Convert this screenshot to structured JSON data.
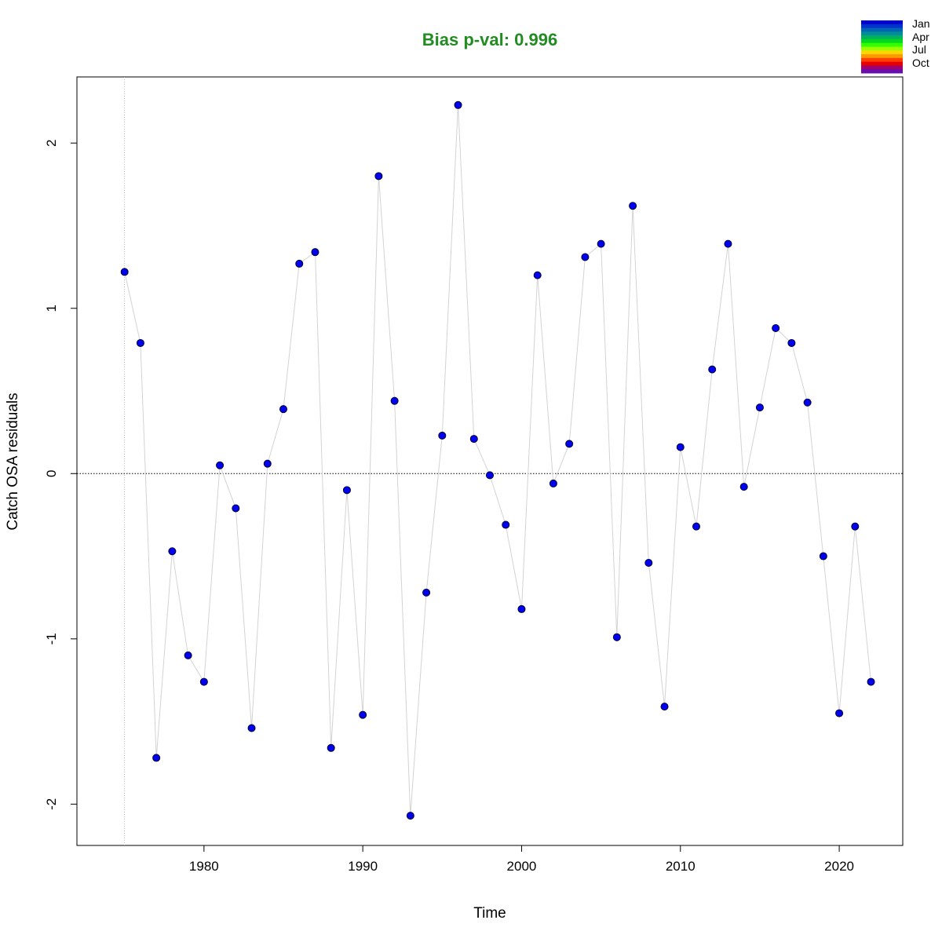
{
  "chart_data": {
    "type": "scatter",
    "title": "Bias p-val: 0.996",
    "title_color": "#228B22",
    "xlabel": "Time",
    "ylabel": "Catch OSA residuals",
    "xlim": [
      1972,
      2024
    ],
    "ylim": [
      -2.25,
      2.4
    ],
    "xticks": [
      1980,
      1990,
      2000,
      2010,
      2020
    ],
    "yticks": [
      -2,
      -1,
      0,
      1,
      2
    ],
    "reference_hline": 0,
    "reference_vline": 1975,
    "grid": false,
    "legend_position": "top-right",
    "legend": {
      "labels": [
        "Jan",
        "Apr",
        "Jul",
        "Oct"
      ],
      "colors": [
        "#0000CD",
        "#0033CC",
        "#0066B3",
        "#008C99",
        "#00B35A",
        "#00D91F",
        "#33FF00",
        "#99FF00",
        "#FFD700",
        "#FF9900",
        "#FF4000",
        "#E60000",
        "#A0006E",
        "#6A0DAD"
      ]
    },
    "marker_color": "#0000EE",
    "line_color": "#D3D3D3",
    "series": [
      {
        "x": [
          1975,
          1976,
          1977,
          1978,
          1979,
          1980,
          1981,
          1982,
          1983,
          1984,
          1985,
          1986,
          1987,
          1988,
          1989,
          1990,
          1991,
          1992,
          1993,
          1994,
          1995,
          1996,
          1997,
          1998,
          1999,
          2000,
          2001,
          2002,
          2003,
          2004,
          2005,
          2006,
          2007,
          2008,
          2009,
          2010,
          2011,
          2012,
          2013,
          2014,
          2015,
          2016,
          2017,
          2018,
          2019,
          2020,
          2021,
          2022
        ],
        "y": [
          1.22,
          0.79,
          -1.72,
          -0.47,
          -1.1,
          -1.26,
          0.05,
          -0.21,
          -1.54,
          0.06,
          0.39,
          1.27,
          1.34,
          -1.66,
          -0.1,
          -1.46,
          1.8,
          0.44,
          -2.07,
          -0.72,
          0.23,
          2.23,
          0.21,
          -0.01,
          -0.31,
          -0.82,
          1.2,
          -0.06,
          0.18,
          1.31,
          1.39,
          -0.99,
          1.62,
          -0.54,
          -1.41,
          0.16,
          -0.32,
          0.63,
          1.39,
          -0.08,
          0.4,
          0.88,
          0.79,
          0.43,
          -0.5,
          -1.45,
          -0.32,
          -1.26
        ]
      }
    ]
  }
}
